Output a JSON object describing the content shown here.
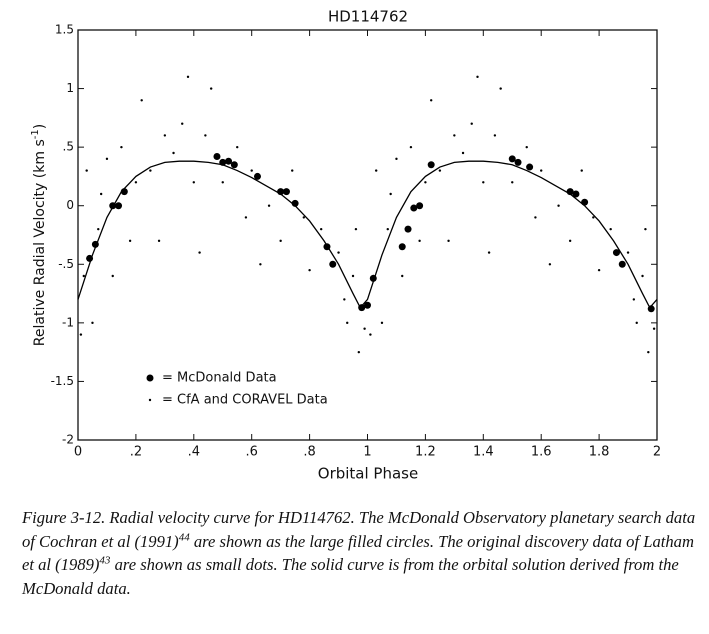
{
  "chart_data": {
    "type": "scatter",
    "title": "HD114762",
    "xlabel": "Orbital Phase",
    "ylabel": [
      "Relative Radial Velocity (km s",
      "-1",
      ")"
    ],
    "xlim": [
      0,
      2
    ],
    "ylim": [
      -2,
      1.5
    ],
    "xticks": [
      0,
      {
        "value": 0.2,
        "label": ".2"
      },
      {
        "value": 0.4,
        "label": ".4"
      },
      {
        "value": 0.6,
        "label": ".6"
      },
      {
        "value": 0.8,
        "label": ".8"
      },
      1,
      1.2,
      1.4,
      1.6,
      1.8,
      2
    ],
    "yticks": [
      1.5,
      1,
      {
        "value": 0.5,
        "label": ".5"
      },
      0,
      {
        "value": -0.5,
        "label": "-.5"
      },
      -1,
      -1.5,
      -2
    ],
    "series": [
      {
        "name": "= McDonald Data",
        "color": "#000000",
        "marker": "large",
        "x": [
          0.04,
          0.06,
          0.12,
          0.14,
          0.16,
          0.48,
          0.5,
          0.52,
          0.54,
          0.62,
          0.7,
          0.72,
          0.75,
          0.86,
          0.88,
          0.98,
          1.0,
          1.02,
          1.12,
          1.14,
          1.16,
          1.18,
          1.22,
          1.5,
          1.52,
          1.56,
          1.7,
          1.72,
          1.75,
          1.86,
          1.88,
          1.98
        ],
        "values": [
          -0.45,
          -0.33,
          0.0,
          0.0,
          0.12,
          0.42,
          0.37,
          0.38,
          0.35,
          0.25,
          0.12,
          0.12,
          0.02,
          -0.35,
          -0.5,
          -0.87,
          -0.85,
          -0.62,
          -0.35,
          -0.2,
          -0.02,
          0.0,
          0.35,
          0.4,
          0.37,
          0.33,
          0.12,
          0.1,
          0.03,
          -0.4,
          -0.5,
          -0.88
        ]
      },
      {
        "name": "= CfA and CORAVEL Data",
        "color": "#000000",
        "marker": "small",
        "x": [
          0.01,
          0.02,
          0.03,
          0.05,
          0.07,
          0.08,
          0.1,
          0.12,
          0.15,
          0.18,
          0.2,
          0.22,
          0.25,
          0.28,
          0.3,
          0.33,
          0.36,
          0.38,
          0.4,
          0.42,
          0.44,
          0.46,
          0.5,
          0.55,
          0.58,
          0.6,
          0.63,
          0.66,
          0.7,
          0.74,
          0.78,
          0.8,
          0.84,
          0.9,
          0.93,
          0.95,
          0.97,
          0.99,
          0.96,
          0.92,
          1.01,
          1.02,
          1.03,
          1.05,
          1.07,
          1.08,
          1.1,
          1.12,
          1.15,
          1.18,
          1.2,
          1.22,
          1.25,
          1.28,
          1.3,
          1.33,
          1.36,
          1.38,
          1.4,
          1.42,
          1.44,
          1.46,
          1.5,
          1.55,
          1.58,
          1.6,
          1.63,
          1.66,
          1.7,
          1.74,
          1.78,
          1.8,
          1.84,
          1.9,
          1.93,
          1.95,
          1.97,
          1.99,
          1.96,
          1.92
        ],
        "values": [
          -1.1,
          -0.6,
          0.3,
          -1.0,
          -0.2,
          0.1,
          0.4,
          -0.6,
          0.5,
          -0.3,
          0.2,
          0.9,
          0.3,
          -0.3,
          0.6,
          0.45,
          0.7,
          1.1,
          0.2,
          -0.4,
          0.6,
          1.0,
          0.2,
          0.5,
          -0.1,
          0.3,
          -0.5,
          0.0,
          -0.3,
          0.3,
          -0.1,
          -0.55,
          -0.2,
          -0.4,
          -1.0,
          -0.6,
          -1.25,
          -1.05,
          -0.2,
          -0.8,
          -1.1,
          -0.6,
          0.3,
          -1.0,
          -0.2,
          0.1,
          0.4,
          -0.6,
          0.5,
          -0.3,
          0.2,
          0.9,
          0.3,
          -0.3,
          0.6,
          0.45,
          0.7,
          1.1,
          0.2,
          -0.4,
          0.6,
          1.0,
          0.2,
          0.5,
          -0.1,
          0.3,
          -0.5,
          0.0,
          -0.3,
          0.3,
          -0.1,
          -0.55,
          -0.2,
          -0.4,
          -1.0,
          -0.6,
          -1.25,
          -1.05,
          -0.2,
          -0.8
        ]
      }
    ],
    "curve": {
      "color": "#000000",
      "x": [
        0,
        0.05,
        0.1,
        0.15,
        0.2,
        0.25,
        0.3,
        0.35,
        0.4,
        0.45,
        0.5,
        0.55,
        0.6,
        0.65,
        0.7,
        0.75,
        0.8,
        0.85,
        0.9,
        0.95,
        0.975,
        1.0,
        1.05,
        1.1,
        1.15,
        1.2,
        1.25,
        1.3,
        1.35,
        1.4,
        1.45,
        1.5,
        1.55,
        1.6,
        1.65,
        1.7,
        1.75,
        1.8,
        1.85,
        1.9,
        1.95,
        1.975,
        2.0
      ],
      "values": [
        -0.8,
        -0.42,
        -0.1,
        0.12,
        0.25,
        0.33,
        0.37,
        0.38,
        0.38,
        0.37,
        0.35,
        0.3,
        0.24,
        0.17,
        0.1,
        0.0,
        -0.13,
        -0.3,
        -0.5,
        -0.75,
        -0.87,
        -0.8,
        -0.42,
        -0.1,
        0.12,
        0.25,
        0.33,
        0.37,
        0.38,
        0.38,
        0.37,
        0.35,
        0.3,
        0.24,
        0.17,
        0.1,
        0.0,
        -0.13,
        -0.3,
        -0.5,
        -0.75,
        -0.87,
        -0.8
      ]
    }
  },
  "caption": [
    "Figure 3-12. Radial velocity curve for HD114762. The McDonald Observatory planetary search data of Cochran et al (1991)",
    "44",
    " are shown as the large filled circles. The original discovery data of Latham et al (1989)",
    "43",
    " are shown as small dots. The solid curve is from the orbital solution derived from the McDonald data."
  ]
}
